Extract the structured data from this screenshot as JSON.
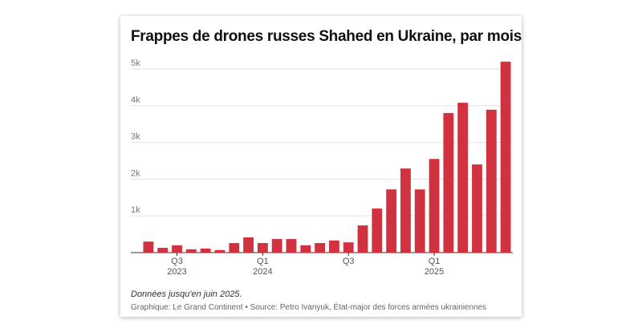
{
  "chart_data": {
    "type": "bar",
    "title": "Frappes de drones russes Shahed en Ukraine, par mois",
    "categories": [
      null,
      null,
      "Q3 2023",
      null,
      null,
      null,
      null,
      null,
      "Q1 2024",
      null,
      null,
      null,
      null,
      null,
      "Q3",
      null,
      null,
      null,
      null,
      null,
      "Q1 2025",
      null,
      null,
      null,
      null,
      null
    ],
    "values": [
      300,
      130,
      200,
      90,
      110,
      70,
      260,
      415,
      260,
      370,
      370,
      200,
      260,
      330,
      280,
      740,
      1200,
      1720,
      2290,
      1720,
      2550,
      3800,
      4080,
      2400,
      3890,
      5200
    ],
    "color": "#d0323f",
    "ylim": [
      0,
      5400
    ],
    "yticks": [
      {
        "value": 1000,
        "label": "1k"
      },
      {
        "value": 2000,
        "label": "2k"
      },
      {
        "value": 3000,
        "label": "3k"
      },
      {
        "value": 4000,
        "label": "4k"
      },
      {
        "value": 5000,
        "label": "5k"
      }
    ],
    "grid": true,
    "note": "Données jusqu'en juin 2025.",
    "source": "Graphique: Le Grand Continent • Source: Petro Ivanyuk, État-major des forces armées ukrainiennes"
  }
}
